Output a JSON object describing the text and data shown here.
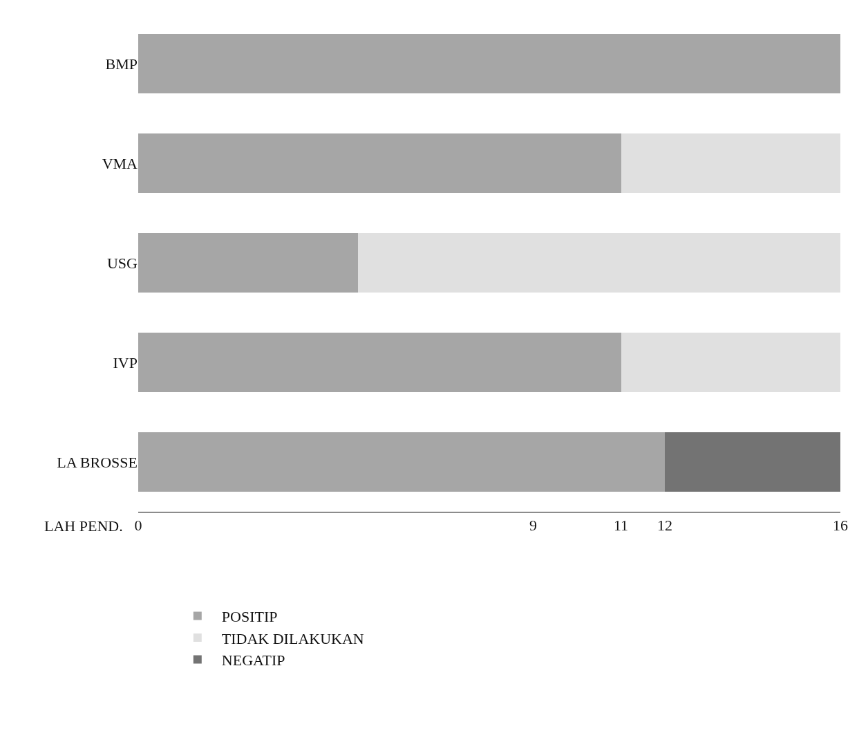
{
  "chart_data": {
    "type": "bar",
    "orientation": "horizontal",
    "stacked": true,
    "categories": [
      "BMP",
      "VMA",
      "USG",
      "IVP",
      "LA BROSSE"
    ],
    "series": [
      {
        "name": "POSITIP",
        "color": "#a6a6a6",
        "values": [
          16,
          11,
          5,
          11,
          12
        ]
      },
      {
        "name": "TIDAK DILAKUKAN",
        "color": "#e0e0e0",
        "values": [
          null,
          5,
          11,
          5,
          null
        ]
      },
      {
        "name": "NEGATIP",
        "color": "#737373",
        "values": [
          null,
          null,
          null,
          null,
          4
        ]
      }
    ],
    "xlabel": "LAH PEND.",
    "xlim": [
      0,
      16
    ],
    "xticks": [
      0,
      9,
      11,
      12,
      16
    ],
    "legend": "bottom"
  }
}
